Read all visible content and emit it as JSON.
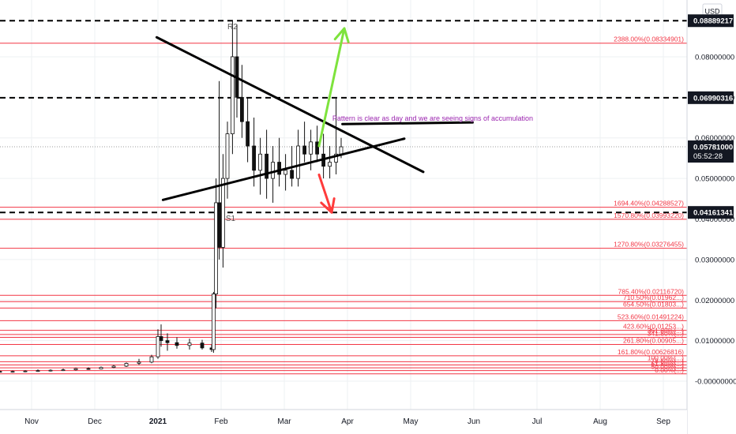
{
  "chart_data": {
    "type": "candlestick",
    "title": "",
    "currency_label": "USD",
    "xlabel": "",
    "ylabel": "",
    "ylim": [
      -0.007,
      0.094
    ],
    "xlim_months": [
      -1.35,
      9.2
    ],
    "grid": true,
    "x_ticks": [
      {
        "m": 0.0,
        "label": "Nov"
      },
      {
        "m": 1.0,
        "label": "Dec"
      },
      {
        "m": 2.0,
        "label": "2021"
      },
      {
        "m": 3.0,
        "label": "Feb"
      },
      {
        "m": 4.0,
        "label": "Mar"
      },
      {
        "m": 5.0,
        "label": "Apr"
      },
      {
        "m": 6.0,
        "label": "May"
      },
      {
        "m": 7.0,
        "label": "Jun"
      },
      {
        "m": 8.0,
        "label": "Jul"
      },
      {
        "m": 9.0,
        "label": "Aug"
      },
      {
        "m": 10.0,
        "label": "Sep"
      }
    ],
    "y_ticks": [
      {
        "v": 0.08,
        "label": "0.08000000"
      },
      {
        "v": 0.07,
        "label": "0.07000000"
      },
      {
        "v": 0.06,
        "label": "0.06000000"
      },
      {
        "v": 0.05,
        "label": "0.05000000"
      },
      {
        "v": 0.04,
        "label": "0.04000000"
      },
      {
        "v": 0.03,
        "label": "0.03000000"
      },
      {
        "v": 0.02,
        "label": "0.02000000"
      },
      {
        "v": 0.01,
        "label": "0.01000000"
      },
      {
        "v": 0.0,
        "label": "-0.00000000"
      }
    ],
    "price_levels": [
      {
        "v": 0.08889217,
        "label": "0.08889217",
        "style": "dashed-black"
      },
      {
        "v": 0.06990316,
        "label": "0.06990316",
        "style": "dashed-black"
      },
      {
        "v": 0.0578,
        "label": "0.05781000",
        "style": "current",
        "sub": "05:52:28"
      },
      {
        "v": 0.04161341,
        "label": "0.04161341",
        "style": "dashed-black"
      }
    ],
    "fib_levels": [
      {
        "v": 0.08334901,
        "label": "2388.00%(0.08334901)"
      },
      {
        "v": 0.04288527,
        "label": "1694.40%(0.04288527)"
      },
      {
        "v": 0.0399322,
        "label": "1570.80%(0.03993220)"
      },
      {
        "v": 0.03276455,
        "label": "1270.80%(0.03276455)"
      },
      {
        "v": 0.0211672,
        "label": "785.40%(0.02116720)"
      },
      {
        "v": 0.01962,
        "label": "710.50%(0.01962...)"
      },
      {
        "v": 0.01803,
        "label": "654.50%(0.01803...)"
      },
      {
        "v": 0.01491224,
        "label": "523.60%(0.01491224)"
      },
      {
        "v": 0.01253,
        "label": "423.60%(0.01253...)"
      },
      {
        "v": 0.0115,
        "label": "361.80%(...)"
      },
      {
        "v": 0.0108,
        "label": "341.80%(...)"
      },
      {
        "v": 0.00905,
        "label": "261.80%(0.00905...)"
      },
      {
        "v": 0.00626816,
        "label": "161.80%(0.00626816)"
      },
      {
        "v": 0.0048,
        "label": "100.00%(...)"
      },
      {
        "v": 0.004,
        "label": "78.60%(...)"
      },
      {
        "v": 0.0033,
        "label": "61.80%(...)"
      },
      {
        "v": 0.0026,
        "label": "50.00%(...)"
      },
      {
        "v": 0.0018,
        "label": "0.00%(...)"
      }
    ],
    "annotations": [
      {
        "text": "R2",
        "m": 3.18,
        "v": 0.0868
      },
      {
        "text": "S1",
        "m": 3.15,
        "v": 0.0395
      },
      {
        "text": "Pattern is clear as day and we are seeing signs of accumulation",
        "m": 6.35,
        "v": 0.0642
      }
    ],
    "trendlines": [
      {
        "from": [
          1.98,
          0.0848
        ],
        "to": [
          6.2,
          0.0516
        ],
        "color": "#000000",
        "width": 3
      },
      {
        "from": [
          2.08,
          0.0447
        ],
        "to": [
          5.9,
          0.0598
        ],
        "color": "#000000",
        "width": 3
      },
      {
        "from": [
          4.92,
          0.0634
        ],
        "to": [
          6.98,
          0.0638
        ],
        "color": "#000000",
        "width": 3
      },
      {
        "from": [
          4.55,
          0.058
        ],
        "to": [
          4.95,
          0.087
        ],
        "color": "#7ee33d",
        "width": 3,
        "arrow": true
      },
      {
        "from": [
          4.55,
          0.0509
        ],
        "to": [
          4.75,
          0.0416
        ],
        "color": "#ff3b3b",
        "width": 3,
        "arrow": true
      }
    ],
    "candles": [
      [
        -1.3,
        0.0022,
        0.0024,
        0.002,
        0.0022
      ],
      [
        -1.1,
        0.0022,
        0.0025,
        0.002,
        0.0023
      ],
      [
        -0.9,
        0.0023,
        0.0025,
        0.0021,
        0.0022
      ],
      [
        -0.7,
        0.0022,
        0.0025,
        0.002,
        0.0024
      ],
      [
        -0.5,
        0.0024,
        0.0026,
        0.0022,
        0.0023
      ],
      [
        -0.3,
        0.0023,
        0.0026,
        0.0021,
        0.0024
      ],
      [
        -0.1,
        0.0024,
        0.0027,
        0.0022,
        0.0025
      ],
      [
        0.1,
        0.0025,
        0.0029,
        0.0023,
        0.0026
      ],
      [
        0.3,
        0.0026,
        0.0029,
        0.0024,
        0.0027
      ],
      [
        0.5,
        0.0027,
        0.0031,
        0.0025,
        0.0028
      ],
      [
        0.7,
        0.0028,
        0.0033,
        0.0026,
        0.0031
      ],
      [
        0.9,
        0.0031,
        0.0034,
        0.0028,
        0.003
      ],
      [
        1.1,
        0.003,
        0.0036,
        0.0029,
        0.0034
      ],
      [
        1.3,
        0.0034,
        0.004,
        0.0032,
        0.0037
      ],
      [
        1.5,
        0.0037,
        0.0046,
        0.0035,
        0.0044
      ],
      [
        1.7,
        0.0044,
        0.0055,
        0.004,
        0.0047
      ],
      [
        1.9,
        0.0047,
        0.0065,
        0.0044,
        0.006
      ],
      [
        2.0,
        0.006,
        0.0128,
        0.0055,
        0.011
      ],
      [
        2.05,
        0.011,
        0.014,
        0.0085,
        0.01
      ],
      [
        2.15,
        0.01,
        0.0118,
        0.0075,
        0.0095
      ],
      [
        2.3,
        0.0095,
        0.0108,
        0.008,
        0.0088
      ],
      [
        2.5,
        0.0088,
        0.0105,
        0.0078,
        0.0094
      ],
      [
        2.7,
        0.0094,
        0.0102,
        0.0078,
        0.0082
      ],
      [
        2.85,
        0.0082,
        0.009,
        0.0072,
        0.0078
      ],
      [
        2.88,
        0.0078,
        0.022,
        0.007,
        0.0215
      ],
      [
        2.92,
        0.0215,
        0.05,
        0.018,
        0.044
      ],
      [
        2.97,
        0.044,
        0.074,
        0.03,
        0.033
      ],
      [
        3.03,
        0.033,
        0.056,
        0.028,
        0.05
      ],
      [
        3.1,
        0.05,
        0.064,
        0.045,
        0.061
      ],
      [
        3.18,
        0.061,
        0.089,
        0.056,
        0.08
      ],
      [
        3.25,
        0.08,
        0.088,
        0.065,
        0.07
      ],
      [
        3.33,
        0.07,
        0.078,
        0.06,
        0.064
      ],
      [
        3.42,
        0.064,
        0.07,
        0.054,
        0.058
      ],
      [
        3.52,
        0.058,
        0.065,
        0.048,
        0.052
      ],
      [
        3.62,
        0.052,
        0.06,
        0.046,
        0.056
      ],
      [
        3.72,
        0.056,
        0.062,
        0.045,
        0.05
      ],
      [
        3.82,
        0.05,
        0.058,
        0.044,
        0.054
      ],
      [
        3.92,
        0.054,
        0.06,
        0.048,
        0.051
      ],
      [
        4.02,
        0.051,
        0.056,
        0.047,
        0.052
      ],
      [
        4.12,
        0.052,
        0.058,
        0.048,
        0.05
      ],
      [
        4.22,
        0.05,
        0.062,
        0.048,
        0.058
      ],
      [
        4.32,
        0.058,
        0.064,
        0.054,
        0.056
      ],
      [
        4.42,
        0.056,
        0.062,
        0.052,
        0.059
      ],
      [
        4.52,
        0.059,
        0.063,
        0.054,
        0.056
      ],
      [
        4.62,
        0.056,
        0.061,
        0.05,
        0.053
      ],
      [
        4.72,
        0.053,
        0.058,
        0.05,
        0.054
      ],
      [
        4.82,
        0.054,
        0.07,
        0.051,
        0.056
      ],
      [
        4.9,
        0.056,
        0.06,
        0.055,
        0.0578
      ]
    ]
  }
}
